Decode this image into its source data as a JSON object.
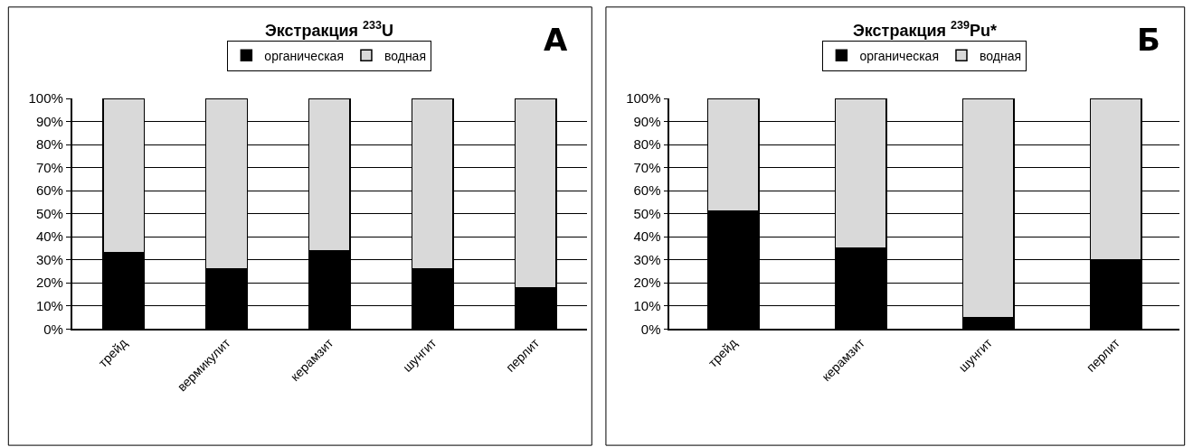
{
  "chart_data": [
    {
      "type": "bar",
      "title": "Экстракция $^{233}$U",
      "stacked": true,
      "grid": "y",
      "legend": "top",
      "annotations": [
        "А"
      ],
      "categories": [
        "трейд",
        "вермикулит",
        "керамзит",
        "шунгит",
        "перлит"
      ],
      "series": [
        {
          "name": "органическая",
          "color": "#000000",
          "values": [
            33,
            26,
            34,
            26,
            18
          ]
        },
        {
          "name": "водная",
          "color": "#d9d9d9",
          "values": [
            67,
            74,
            66,
            74,
            82
          ]
        }
      ],
      "ylim": [
        0,
        100
      ],
      "yticks": [
        {
          "value": 0,
          "label": "0%"
        },
        {
          "value": 10,
          "label": "10%"
        },
        {
          "value": 20,
          "label": "20%"
        },
        {
          "value": 30,
          "label": "30%"
        },
        {
          "value": 40,
          "label": "40%"
        },
        {
          "value": 50,
          "label": "50%"
        },
        {
          "value": 60,
          "label": "60%"
        },
        {
          "value": 70,
          "label": "70%"
        },
        {
          "value": 80,
          "label": "80%"
        },
        {
          "value": 90,
          "label": "90%"
        },
        {
          "value": 100,
          "label": "100%"
        }
      ]
    },
    {
      "type": "bar",
      "title": "Экстракция $^{239}$Pu*",
      "stacked": true,
      "grid": "y",
      "legend": "top",
      "annotations": [
        "Б"
      ],
      "categories": [
        "трейд",
        "керамзит",
        "шунгит",
        "перлит"
      ],
      "series": [
        {
          "name": "органическая",
          "color": "#000000",
          "values": [
            51,
            35,
            5,
            30
          ]
        },
        {
          "name": "водная",
          "color": "#d9d9d9",
          "values": [
            49,
            65,
            95,
            70
          ]
        }
      ],
      "ylim": [
        0,
        100
      ],
      "yticks": [
        {
          "value": 0,
          "label": "0%"
        },
        {
          "value": 10,
          "label": "10%"
        },
        {
          "value": 20,
          "label": "20%"
        },
        {
          "value": 30,
          "label": "30%"
        },
        {
          "value": 40,
          "label": "40%"
        },
        {
          "value": 50,
          "label": "50%"
        },
        {
          "value": 60,
          "label": "60%"
        },
        {
          "value": 70,
          "label": "70%"
        },
        {
          "value": 80,
          "label": "80%"
        },
        {
          "value": 90,
          "label": "90%"
        },
        {
          "value": 100,
          "label": "100%"
        }
      ]
    }
  ]
}
